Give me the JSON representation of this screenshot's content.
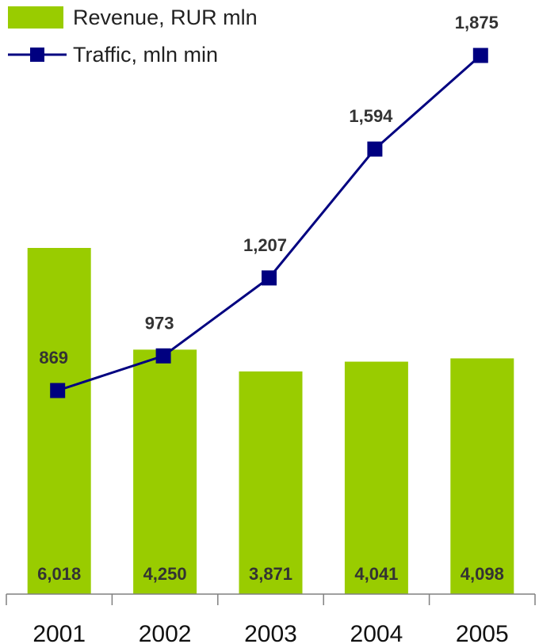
{
  "chart_data": {
    "type": "bar",
    "categories": [
      "2001",
      "2002",
      "2003",
      "2004",
      "2005"
    ],
    "series": [
      {
        "name": "Revenue, RUR mln",
        "type": "bar",
        "values": [
          6018,
          4250,
          3871,
          4041,
          4098
        ],
        "value_labels": [
          "6,018",
          "4,250",
          "3,871",
          "4,041",
          "4,098"
        ],
        "color": "#99CC00"
      },
      {
        "name": "Traffic, mln min",
        "type": "line",
        "marker": "square",
        "values": [
          869,
          973,
          1207,
          1594,
          1875
        ],
        "value_labels": [
          "869",
          "973",
          "1,207",
          "1,594",
          "1,875"
        ],
        "color": "#000080"
      }
    ],
    "legend_position": "top-left",
    "grid": false,
    "y_axis_visible": false,
    "title": "",
    "xlabel": "",
    "ylabel": ""
  }
}
